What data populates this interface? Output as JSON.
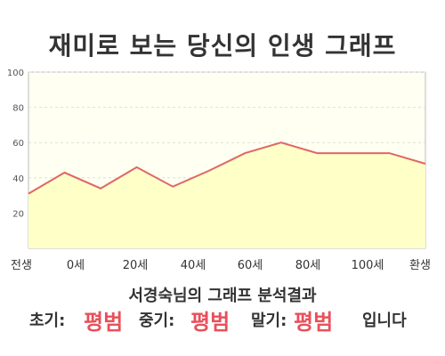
{
  "title": "재미로 보는 당신의 인생 그래프",
  "chart_data": {
    "type": "area",
    "x_labels": [
      "전생",
      "0세",
      "20세",
      "40세",
      "60세",
      "80세",
      "100세",
      "환생"
    ],
    "y_ticks": [
      20,
      40,
      60,
      80,
      100
    ],
    "ylim": [
      0,
      100
    ],
    "series": [
      {
        "values": [
          31,
          43,
          34,
          46,
          35,
          44,
          54,
          60,
          54,
          54,
          54,
          48
        ]
      }
    ],
    "colors": {
      "line": "#e06666",
      "fill": "#ffffc8",
      "plot_bg": "#fffff2",
      "grid": "#dddddd"
    }
  },
  "subtitle": "서경숙님의 그래프 분석결과",
  "result": {
    "early_label": "초기:",
    "early_value": "평범",
    "middle_label": "중기:",
    "middle_value": "평범",
    "late_label": "말기:",
    "late_value": "평범",
    "suffix": "입니다"
  }
}
